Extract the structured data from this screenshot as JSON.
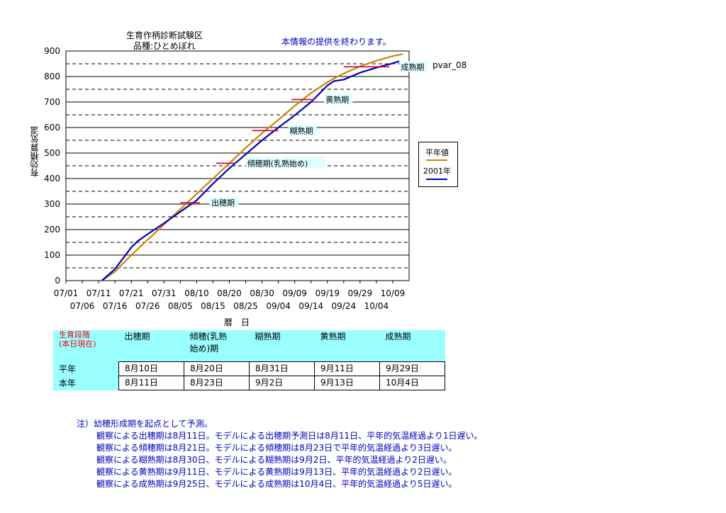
{
  "chart_data": {
    "type": "line",
    "title_line1": "生育作柄診断試験区",
    "title_line2": "品種:ひとめぼれ",
    "notice": "本情報の提供を終わります。",
    "code": "pvar_08",
    "ylabel": "有効積算気温",
    "xlabel": "暦　日",
    "ylim": [
      0,
      900
    ],
    "yticks": [
      "0",
      "100",
      "200",
      "300",
      "400",
      "500",
      "600",
      "700",
      "800",
      "900"
    ],
    "xticks_upper": [
      "07/01",
      "07/11",
      "07/21",
      "07/31",
      "08/10",
      "08/20",
      "08/30",
      "09/09",
      "09/19",
      "09/29",
      "10/09"
    ],
    "xticks_lower": [
      "07/06",
      "07/16",
      "07/26",
      "08/05",
      "08/15",
      "08/25",
      "09/04",
      "09/14",
      "09/24",
      "10/04"
    ],
    "x_domain_days": [
      0,
      105
    ],
    "series": [
      {
        "name": "平年値",
        "color": "#cc8400",
        "x": [
          "07/12",
          "07/16",
          "07/21",
          "07/26",
          "07/31",
          "08/05",
          "08/10",
          "08/15",
          "08/20",
          "08/25",
          "08/30",
          "09/04",
          "09/09",
          "09/14",
          "09/19",
          "09/24",
          "09/29",
          "10/04",
          "10/09",
          "10/12"
        ],
        "y": [
          0,
          35,
          100,
          160,
          220,
          280,
          340,
          400,
          460,
          520,
          578,
          630,
          685,
          735,
          778,
          812,
          840,
          862,
          880,
          888
        ]
      },
      {
        "name": "2001年",
        "color": "#0000c0",
        "x": [
          "07/12",
          "07/16",
          "07/21",
          "07/23",
          "07/26",
          "07/31",
          "08/05",
          "08/10",
          "08/15",
          "08/20",
          "08/25",
          "08/30",
          "09/04",
          "09/09",
          "09/14",
          "09/19",
          "09/21",
          "09/24",
          "09/29",
          "10/04",
          "10/09",
          "10/11"
        ],
        "y": [
          0,
          45,
          130,
          155,
          182,
          225,
          270,
          315,
          380,
          440,
          495,
          550,
          600,
          648,
          700,
          765,
          782,
          788,
          815,
          835,
          852,
          860
        ]
      }
    ],
    "stage_markers": [
      {
        "label": "出穂期",
        "y": 305,
        "x_start": "08/05",
        "x_end": "08/11"
      },
      {
        "label": "傾穂期(乳熟始め)",
        "y": 460,
        "x_start": "08/16",
        "x_end": "08/22"
      },
      {
        "label": "糊熟期",
        "y": 588,
        "x_start": "08/27",
        "x_end": "09/04"
      },
      {
        "label": "黄熟期",
        "y": 710,
        "x_start": "09/08",
        "x_end": "09/15"
      },
      {
        "label": "成熟期",
        "y": 838,
        "x_start": "09/24",
        "x_end": "10/08"
      }
    ]
  },
  "table": {
    "header_title": "生育段階",
    "header_sub": "(本日現在)",
    "stages": [
      "出穂期",
      "傾穂(乳熟",
      "糊熟期",
      "黄熟期",
      "成熟期"
    ],
    "stage2_line2": "始め)期",
    "rows": [
      {
        "label": "平年",
        "values": [
          "8月10日",
          "8月20日",
          "8月31日",
          "9月11日",
          "9月29日"
        ]
      },
      {
        "label": "本年",
        "values": [
          "8月11日",
          "8月23日",
          "9月2日",
          "9月13日",
          "10月4日"
        ]
      }
    ]
  },
  "notes": {
    "head": "注）幼穂形成期を起点として予測。",
    "lines": [
      "観察による出穂期は8月11日。モデルによる出穂期予測日は8月11日、平年的気温経過より1日遅い。",
      "観察による傾穂期は8月21日。モデルによる傾穂期は8月23日で平年的気温経過より3日遅い。",
      "観察による糊熟期は8月30日、モデルによる糊熟期は9月2日、平年的気温経過より2日遅い。",
      "観察による黄熟期は9月11日、モデルによる黄熟期は9月13日、平年的気温経過より2日遅い。",
      "観察による成熟期は9月25日、モデルによる成熟期は10月4日、平年的気温経過より5日遅い。"
    ]
  }
}
